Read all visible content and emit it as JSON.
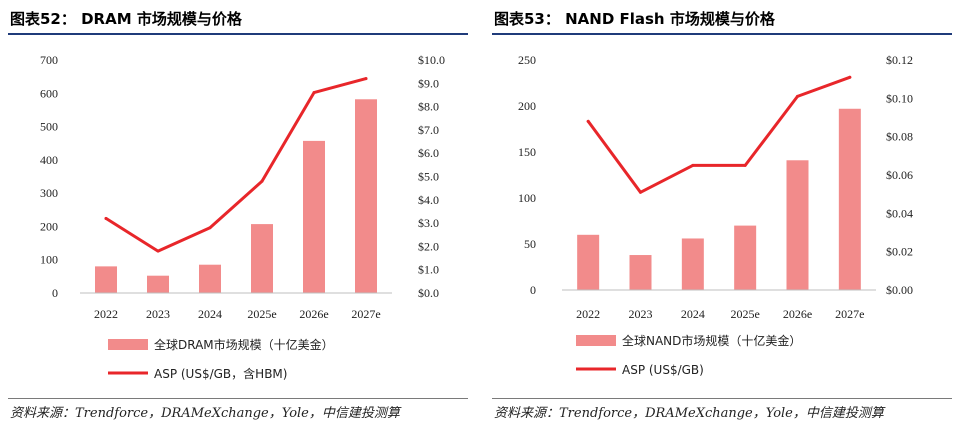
{
  "charts": [
    {
      "figure_title": "图表52：  DRAM 市场规模与价格",
      "source": "资料来源：Trendforce，DRAMeXchange，Yole，中信建投测算",
      "legend_bar": "全球DRAM市场规模（十亿美金）",
      "legend_line": "ASP (US$/GB，含HBM)",
      "left_ticks": [
        "700",
        "600",
        "500",
        "400",
        "300",
        "200",
        "100",
        "0"
      ],
      "right_ticks": [
        "$10.0",
        "$9.0",
        "$8.0",
        "$7.0",
        "$6.0",
        "$5.0",
        "$4.0",
        "$3.0",
        "$2.0",
        "$1.0",
        "$0.0"
      ]
    },
    {
      "figure_title": "图表53：  NAND Flash 市场规模与价格",
      "source": "资料来源：Trendforce，DRAMeXchange，Yole，中信建投测算",
      "legend_bar": "全球NAND市场规模（十亿美金）",
      "legend_line": "ASP (US$/GB)",
      "left_ticks": [
        "250",
        "200",
        "150",
        "100",
        "50",
        "0"
      ],
      "right_ticks": [
        "$0.12",
        "$0.10",
        "$0.08",
        "$0.06",
        "$0.04",
        "$0.02",
        "$0.00"
      ]
    }
  ],
  "colors": {
    "bar": "#f28b8b",
    "line": "#e8262a",
    "title_rule": "#1f3b7a"
  },
  "chart_data": [
    {
      "type": "bar",
      "categories": [
        "2022",
        "2023",
        "2024",
        "2025e",
        "2026e",
        "2027e"
      ],
      "series": [
        {
          "name": "全球DRAM市场规模（十亿美金）",
          "type": "bar",
          "axis": "left",
          "values": [
            80,
            52,
            85,
            207,
            457,
            582
          ]
        },
        {
          "name": "ASP (US$/GB，含HBM)",
          "type": "line",
          "axis": "right",
          "values": [
            3.2,
            1.8,
            2.8,
            4.8,
            8.6,
            9.2
          ]
        }
      ],
      "ylim": [
        0,
        700
      ],
      "y2lim": [
        0,
        10
      ]
    },
    {
      "type": "bar",
      "categories": [
        "2022",
        "2023",
        "2024",
        "2025e",
        "2026e",
        "2027e"
      ],
      "series": [
        {
          "name": "全球NAND市场规模（十亿美金）",
          "type": "bar",
          "axis": "left",
          "values": [
            60,
            38,
            56,
            70,
            141,
            197
          ]
        },
        {
          "name": "ASP (US$/GB)",
          "type": "line",
          "axis": "right",
          "values": [
            0.088,
            0.051,
            0.065,
            0.065,
            0.101,
            0.111
          ]
        }
      ],
      "ylim": [
        0,
        250
      ],
      "y2lim": [
        0,
        0.12
      ]
    }
  ]
}
